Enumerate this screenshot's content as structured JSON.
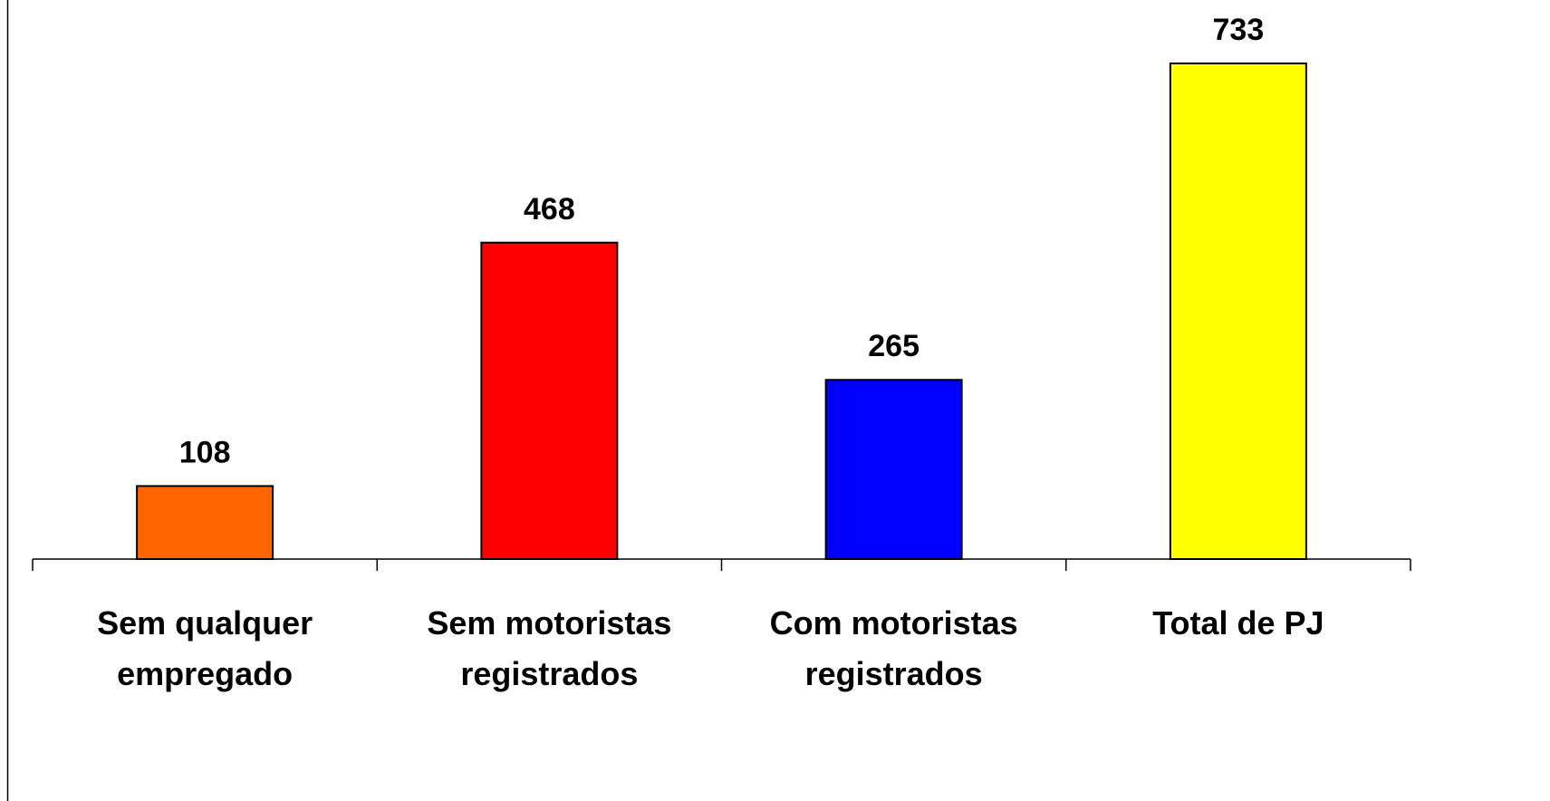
{
  "chart_data": {
    "type": "bar",
    "categories": [
      "Sem qualquer empregado",
      "Sem motoristas registrados",
      "Com motoristas registrados",
      "Total de PJ"
    ],
    "values": [
      108,
      468,
      265,
      733
    ],
    "colors": [
      "#ff6600",
      "#ff0000",
      "#0000ff",
      "#ffff00"
    ]
  }
}
